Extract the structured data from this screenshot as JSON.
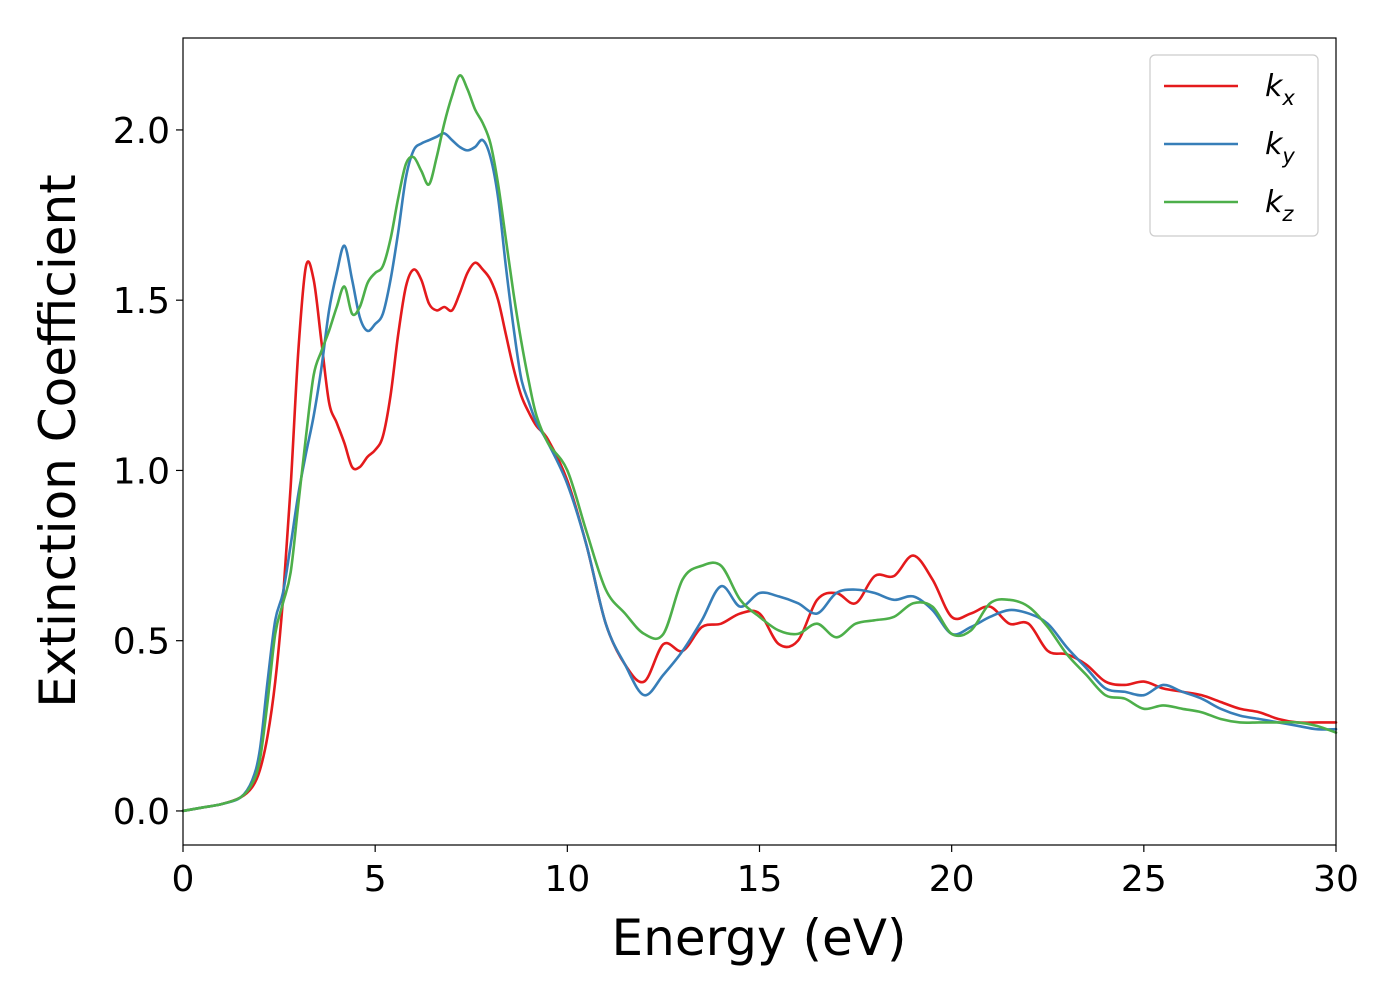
{
  "chart_data": {
    "type": "line",
    "xlabel": "Energy (eV)",
    "ylabel": "Extinction Coefficient",
    "xlim": [
      0,
      30
    ],
    "ylim": [
      -0.1,
      2.27
    ],
    "xticks": [
      "0",
      "5",
      "10",
      "15",
      "20",
      "25",
      "30"
    ],
    "yticks": [
      "0.0",
      "0.5",
      "1.0",
      "1.5",
      "2.0"
    ],
    "grid": false,
    "legend_position": "top-right",
    "x": [
      0,
      0.5,
      1.0,
      1.5,
      1.8,
      2.0,
      2.2,
      2.4,
      2.6,
      2.8,
      3.0,
      3.2,
      3.4,
      3.6,
      3.8,
      4.0,
      4.2,
      4.4,
      4.6,
      4.8,
      5.0,
      5.2,
      5.4,
      5.6,
      5.8,
      6.0,
      6.2,
      6.4,
      6.6,
      6.8,
      7.0,
      7.2,
      7.4,
      7.6,
      7.8,
      8.0,
      8.2,
      8.4,
      8.6,
      8.8,
      9.0,
      9.2,
      9.5,
      10.0,
      10.5,
      11.0,
      11.5,
      12.0,
      12.5,
      13.0,
      13.5,
      14.0,
      14.5,
      15.0,
      15.5,
      16.0,
      16.5,
      17.0,
      17.5,
      18.0,
      18.5,
      19.0,
      19.5,
      20.0,
      20.5,
      21.0,
      21.5,
      22.0,
      22.5,
      23.0,
      23.5,
      24.0,
      24.5,
      25.0,
      25.5,
      26.0,
      26.5,
      27.0,
      27.5,
      28.0,
      28.5,
      29.0,
      29.5,
      30.0
    ],
    "series": [
      {
        "name": "k",
        "subscript": "x",
        "color": "#e41a1c",
        "values": [
          0.0,
          0.01,
          0.02,
          0.04,
          0.07,
          0.12,
          0.22,
          0.38,
          0.62,
          0.95,
          1.35,
          1.6,
          1.56,
          1.38,
          1.2,
          1.14,
          1.08,
          1.01,
          1.01,
          1.04,
          1.06,
          1.1,
          1.22,
          1.4,
          1.54,
          1.59,
          1.56,
          1.49,
          1.47,
          1.48,
          1.47,
          1.52,
          1.58,
          1.61,
          1.59,
          1.56,
          1.5,
          1.4,
          1.3,
          1.22,
          1.17,
          1.13,
          1.09,
          0.97,
          0.78,
          0.55,
          0.43,
          0.38,
          0.49,
          0.47,
          0.54,
          0.55,
          0.58,
          0.58,
          0.49,
          0.5,
          0.62,
          0.64,
          0.61,
          0.69,
          0.69,
          0.75,
          0.68,
          0.57,
          0.58,
          0.6,
          0.55,
          0.55,
          0.47,
          0.46,
          0.43,
          0.38,
          0.37,
          0.38,
          0.36,
          0.35,
          0.34,
          0.32,
          0.3,
          0.29,
          0.27,
          0.26,
          0.26,
          0.26
        ]
      },
      {
        "name": "k",
        "subscript": "y",
        "color": "#377eb8",
        "values": [
          0.0,
          0.01,
          0.02,
          0.04,
          0.09,
          0.18,
          0.38,
          0.56,
          0.64,
          0.78,
          0.93,
          1.05,
          1.16,
          1.3,
          1.47,
          1.58,
          1.66,
          1.56,
          1.45,
          1.41,
          1.43,
          1.46,
          1.56,
          1.7,
          1.86,
          1.94,
          1.96,
          1.97,
          1.98,
          1.99,
          1.97,
          1.95,
          1.94,
          1.95,
          1.97,
          1.92,
          1.8,
          1.6,
          1.42,
          1.27,
          1.2,
          1.14,
          1.08,
          0.96,
          0.78,
          0.55,
          0.43,
          0.34,
          0.4,
          0.47,
          0.56,
          0.66,
          0.6,
          0.64,
          0.63,
          0.61,
          0.58,
          0.64,
          0.65,
          0.64,
          0.62,
          0.63,
          0.59,
          0.52,
          0.54,
          0.57,
          0.59,
          0.58,
          0.55,
          0.48,
          0.42,
          0.36,
          0.35,
          0.34,
          0.37,
          0.35,
          0.33,
          0.3,
          0.28,
          0.27,
          0.26,
          0.25,
          0.24,
          0.24
        ]
      },
      {
        "name": "k",
        "subscript": "z",
        "color": "#4daf4a",
        "values": [
          0.0,
          0.01,
          0.02,
          0.04,
          0.08,
          0.15,
          0.32,
          0.52,
          0.61,
          0.7,
          0.9,
          1.1,
          1.28,
          1.35,
          1.41,
          1.48,
          1.54,
          1.46,
          1.48,
          1.55,
          1.58,
          1.6,
          1.68,
          1.8,
          1.9,
          1.92,
          1.88,
          1.84,
          1.92,
          2.02,
          2.1,
          2.16,
          2.12,
          2.06,
          2.02,
          1.96,
          1.84,
          1.68,
          1.52,
          1.38,
          1.26,
          1.16,
          1.08,
          1.0,
          0.82,
          0.65,
          0.58,
          0.52,
          0.52,
          0.68,
          0.72,
          0.72,
          0.62,
          0.57,
          0.53,
          0.52,
          0.55,
          0.51,
          0.55,
          0.56,
          0.57,
          0.61,
          0.6,
          0.52,
          0.53,
          0.61,
          0.62,
          0.6,
          0.54,
          0.46,
          0.4,
          0.34,
          0.33,
          0.3,
          0.31,
          0.3,
          0.29,
          0.27,
          0.26,
          0.26,
          0.26,
          0.26,
          0.25,
          0.23
        ]
      }
    ]
  }
}
